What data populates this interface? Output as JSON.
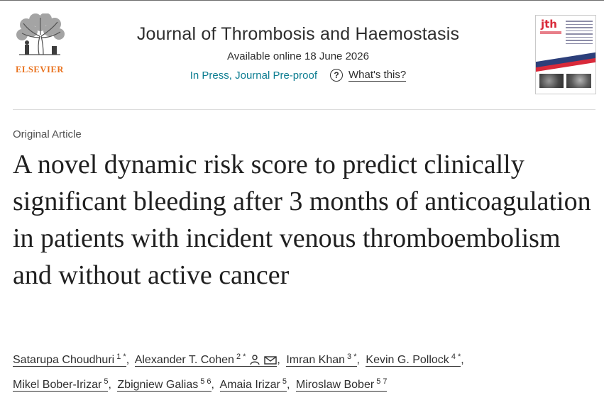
{
  "publisher": {
    "name": "ELSEVIER"
  },
  "journal": {
    "title": "Journal of Thrombosis and Haemostasis",
    "availability": "Available online 18 June 2026",
    "status_link": "In Press, Journal Pre-proof",
    "help_link": "What's this?"
  },
  "cover": {
    "logo_text": "jth"
  },
  "article": {
    "type": "Original Article",
    "title": "A novel dynamic risk score to predict clinically significant bleeding after 3 months of anticoagulation in patients with incident venous thromboembolism and without active cancer"
  },
  "authors": [
    {
      "name": "Satarupa Choudhuri",
      "refs": "1 *",
      "sep": ","
    },
    {
      "name": "Alexander T. Cohen",
      "refs": "2 *",
      "icons": [
        "person-icon",
        "envelope-icon"
      ],
      "sep": ","
    },
    {
      "name": "Imran Khan",
      "refs": "3 *",
      "sep": ","
    },
    {
      "name": "Kevin G. Pollock",
      "refs": "4 *",
      "sep": ","
    },
    {
      "name": "Mikel Bober-Irizar",
      "refs": "5",
      "sep": ","
    },
    {
      "name": "Zbigniew Galias",
      "refs": "5 6",
      "sep": ","
    },
    {
      "name": "Amaia Irizar",
      "refs": "5",
      "sep": ","
    },
    {
      "name": "Miroslaw Bober",
      "refs": "5 7",
      "sep": ""
    }
  ],
  "colors": {
    "publisher_orange": "#e9711c",
    "link_teal": "#0c7d91",
    "text_dark": "#1f1f1f",
    "cover_red": "#d92a3a",
    "cover_blue": "#2c3f7a"
  }
}
